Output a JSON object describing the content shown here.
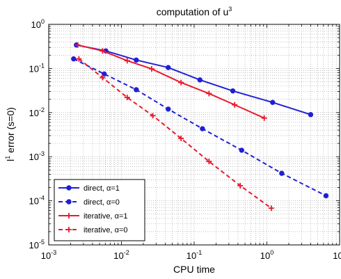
{
  "chart_data": {
    "type": "line",
    "title_text": "computation of u",
    "title_sup": "3",
    "xlabel": "CPU time",
    "ylabel_base": "l",
    "ylabel_sup": "1",
    "ylabel_rest": " error (s=0)",
    "x_scale": "log",
    "y_scale": "log",
    "xlim": [
      0.001,
      10
    ],
    "ylim": [
      1e-05,
      1
    ],
    "x_ticks": [
      {
        "base": "10",
        "exp": "-3",
        "value": 0.001
      },
      {
        "base": "10",
        "exp": "-2",
        "value": 0.01
      },
      {
        "base": "10",
        "exp": "-1",
        "value": 0.1
      },
      {
        "base": "10",
        "exp": "0",
        "value": 1
      },
      {
        "base": "10",
        "exp": "1",
        "value": 10
      }
    ],
    "y_ticks": [
      {
        "base": "10",
        "exp": "-5",
        "value": 1e-05
      },
      {
        "base": "10",
        "exp": "-4",
        "value": 0.0001
      },
      {
        "base": "10",
        "exp": "-3",
        "value": 0.001
      },
      {
        "base": "10",
        "exp": "-2",
        "value": 0.01
      },
      {
        "base": "10",
        "exp": "-1",
        "value": 0.1
      },
      {
        "base": "10",
        "exp": "0",
        "value": 1
      }
    ],
    "grid": "major and minor, dotted",
    "legend_position": "lower-left",
    "series": [
      {
        "name": "direct, α=1",
        "color": "#1f1fd6",
        "style": "solid",
        "marker": "dot",
        "x": [
          0.0024,
          0.0061,
          0.016,
          0.044,
          0.12,
          0.34,
          1.2,
          4.0
        ],
        "y": [
          0.34,
          0.25,
          0.155,
          0.105,
          0.055,
          0.031,
          0.017,
          0.009
        ]
      },
      {
        "name": "direct, α=0",
        "color": "#1f1fd6",
        "style": "dashed",
        "marker": "dot",
        "x": [
          0.0022,
          0.0058,
          0.016,
          0.044,
          0.13,
          0.45,
          1.6,
          6.5
        ],
        "y": [
          0.165,
          0.075,
          0.033,
          0.012,
          0.0043,
          0.0014,
          0.00042,
          0.00013
        ]
      },
      {
        "name": "iterative, α=1",
        "color": "#e8192c",
        "style": "solid",
        "marker": "plus",
        "x": [
          0.0025,
          0.0055,
          0.012,
          0.026,
          0.066,
          0.16,
          0.36,
          0.92
        ],
        "y": [
          0.34,
          0.25,
          0.15,
          0.098,
          0.048,
          0.027,
          0.015,
          0.0075
        ]
      },
      {
        "name": "iterative, α=0",
        "color": "#e8192c",
        "style": "dashed",
        "marker": "plus",
        "x": [
          0.0026,
          0.0055,
          0.012,
          0.027,
          0.066,
          0.16,
          0.43,
          1.15
        ],
        "y": [
          0.165,
          0.062,
          0.022,
          0.0085,
          0.0026,
          0.00078,
          0.00022,
          6.8e-05
        ]
      }
    ]
  }
}
